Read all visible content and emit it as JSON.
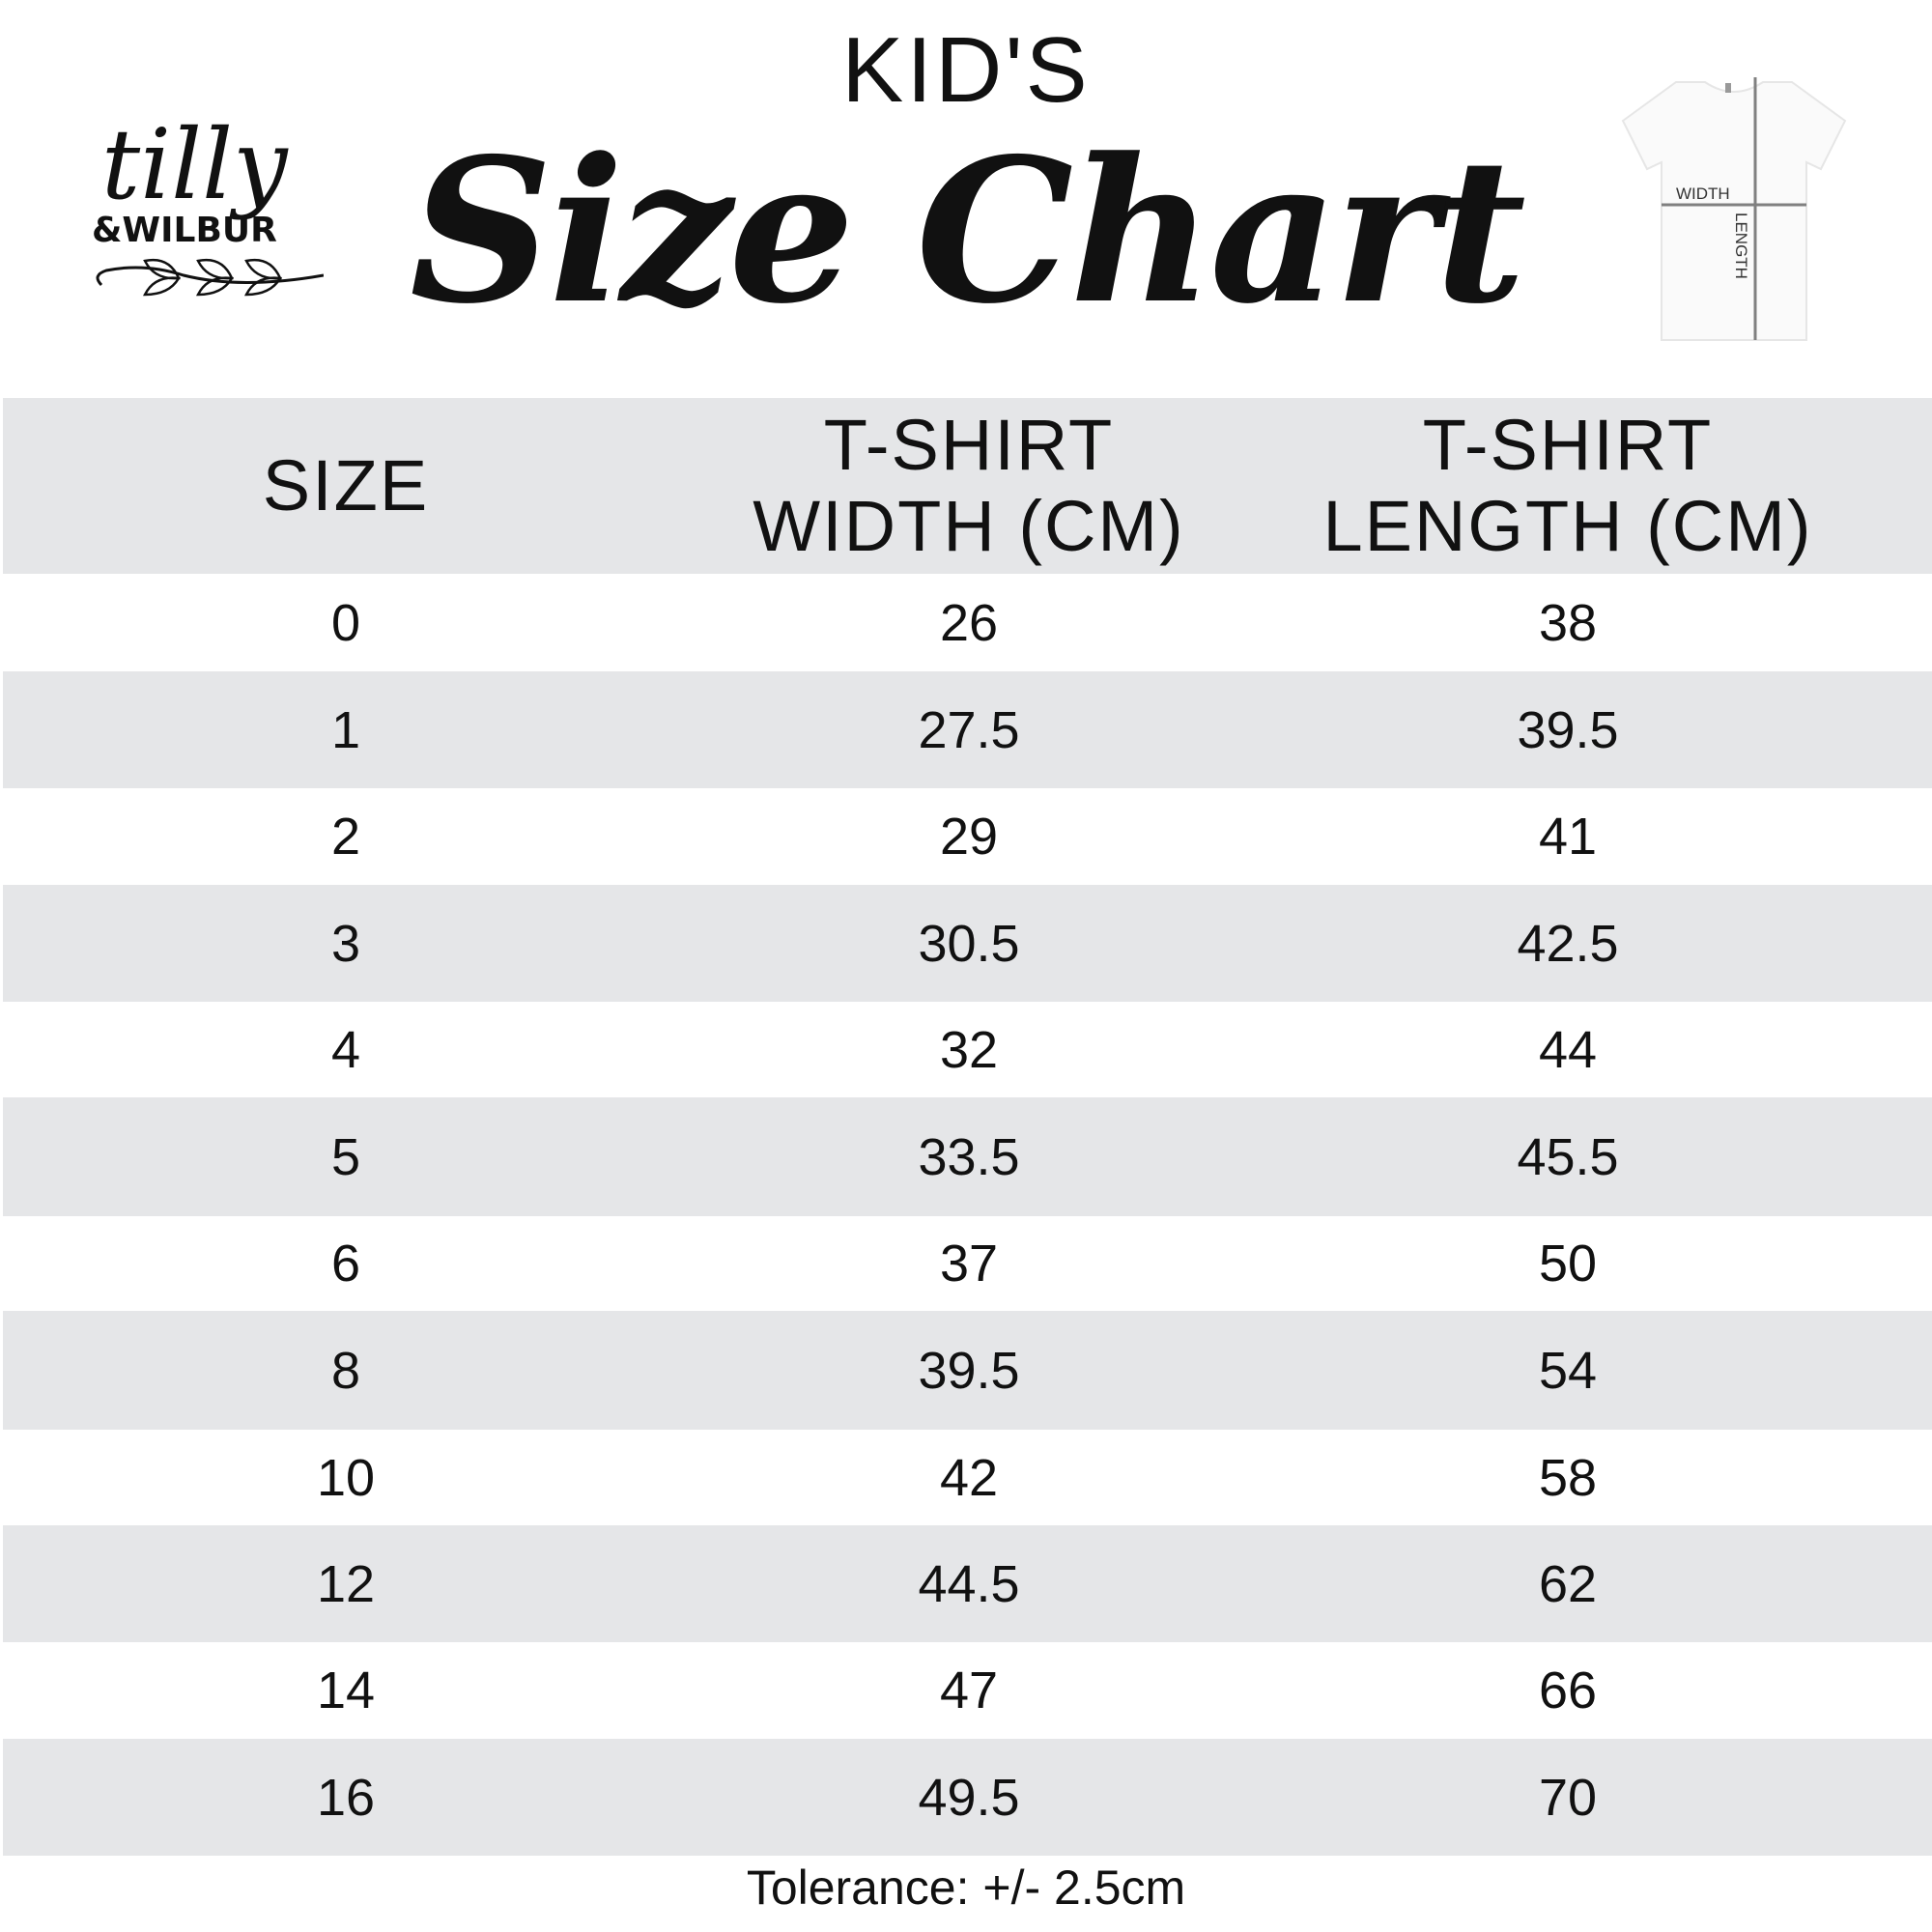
{
  "brand": {
    "logo_text": "tilly & WILBUR"
  },
  "title": {
    "kicker": "KID'S",
    "main": "Size Chart"
  },
  "diagram": {
    "width_label": "WIDTH",
    "length_label": "LENGTH"
  },
  "table": {
    "headers": [
      "SIZE",
      "T-SHIRT\nWIDTH (CM)",
      "T-SHIRT\nLENGTH (CM)"
    ],
    "rows": [
      [
        "0",
        "26",
        "38"
      ],
      [
        "1",
        "27.5",
        "39.5"
      ],
      [
        "2",
        "29",
        "41"
      ],
      [
        "3",
        "30.5",
        "42.5"
      ],
      [
        "4",
        "32",
        "44"
      ],
      [
        "5",
        "33.5",
        "45.5"
      ],
      [
        "6",
        "37",
        "50"
      ],
      [
        "8",
        "39.5",
        "54"
      ],
      [
        "10",
        "42",
        "58"
      ],
      [
        "12",
        "44.5",
        "62"
      ],
      [
        "14",
        "47",
        "66"
      ],
      [
        "16",
        "49.5",
        "70"
      ]
    ]
  },
  "footer": {
    "tolerance": "Tolerance: +/- 2.5cm"
  },
  "colors": {
    "row_stripe": "#e5e6e8",
    "text": "#111111",
    "diagram_line": "#808080"
  }
}
